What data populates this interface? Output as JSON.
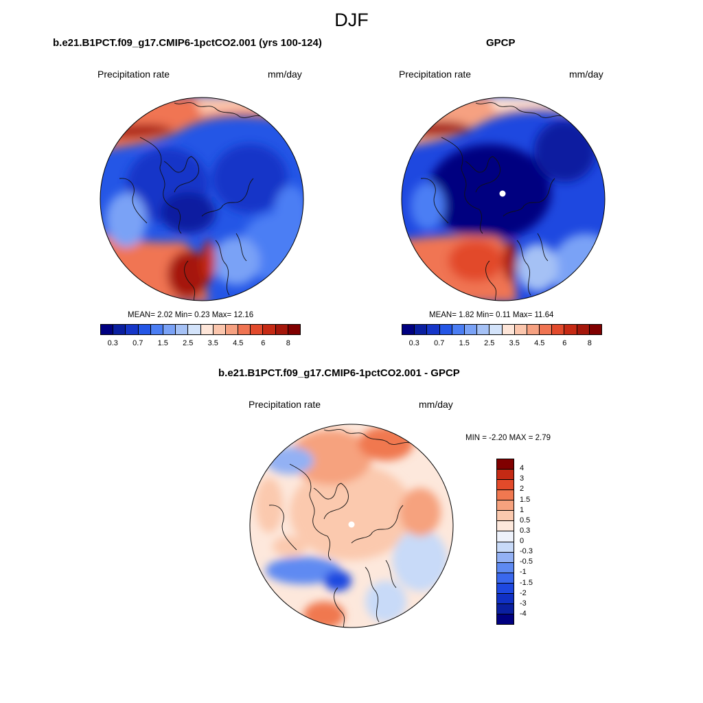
{
  "season": "DJF",
  "colors": {
    "levels16": [
      "#000080",
      "#0a1fa0",
      "#1636c8",
      "#2456e6",
      "#4b7ef4",
      "#7aa2f6",
      "#a5c1f5",
      "#d3e3fa",
      "#fde5d8",
      "#fbc6ad",
      "#f6a181",
      "#f07452",
      "#e24a2c",
      "#c62a14",
      "#a5170b",
      "#800000"
    ],
    "diff16": [
      "#000080",
      "#0a1fa0",
      "#1030c4",
      "#1e48e0",
      "#3a68ee",
      "#5e8af2",
      "#93b1f4",
      "#c8daf8",
      "#eef2fb",
      "#fde8dc",
      "#fbc9ae",
      "#f6a27e",
      "#f07850",
      "#e24a2a",
      "#c42a14",
      "#800000"
    ]
  },
  "panels": [
    {
      "title": "b.e21.B1PCT.f09_g17.CMIP6-1pctCO2.001 (yrs 100-124)",
      "variable": "Precipitation rate",
      "units": "mm/day",
      "stats": "MEAN=   2.02  Min=   0.23  Max=  12.16",
      "tick_labels": [
        "0.3",
        "0.7",
        "1.5",
        "2.5",
        "3.5",
        "4.5",
        "6",
        "8"
      ],
      "map": "model"
    },
    {
      "title": "GPCP",
      "variable": "Precipitation rate",
      "units": "mm/day",
      "stats": "MEAN=   1.82  Min=   0.11  Max=  11.64",
      "tick_labels": [
        "0.3",
        "0.7",
        "1.5",
        "2.5",
        "3.5",
        "4.5",
        "6",
        "8"
      ],
      "map": "obs"
    }
  ],
  "diff_panel": {
    "title": "b.e21.B1PCT.f09_g17.CMIP6-1pctCO2.001 - GPCP",
    "variable": "Precipitation rate",
    "units": "mm/day",
    "stats": "MIN =  -2.20 MAX =   2.79",
    "tick_labels": [
      "4",
      "3",
      "2",
      "1.5",
      "1",
      "0.5",
      "0.3",
      "0",
      "-0.3",
      "-0.5",
      "-1",
      "-1.5",
      "-2",
      "-3",
      "-4"
    ]
  }
}
